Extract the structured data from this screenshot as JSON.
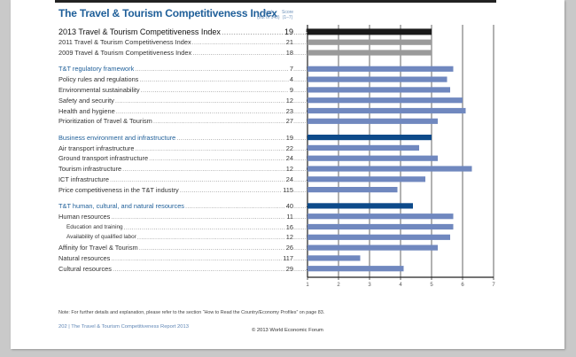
{
  "page": {
    "title": "The Travel & Tourism Competitiveness Index",
    "col_rank_label": "Rank",
    "col_rank_sub": "(out of 140)",
    "col_score_label": "Score",
    "col_score_sub": "(1–7)",
    "note": "Note:   For further details and explanation, please refer to the section “How to Read the Country/Economy Profiles” on page 83.",
    "footer_left": "202  |  The Travel & Tourism Competitiveness Report 2013",
    "footer_right": "© 2013 World Economic Forum"
  },
  "colors": {
    "overall": "#1a1a1a",
    "previous": "#9a9a9a",
    "pillar": "#0d4a8a",
    "indicator": "#7088bf",
    "title": "#1f5f99"
  },
  "chart_data": {
    "type": "bar",
    "orientation": "horizontal",
    "title": "The Travel & Tourism Competitiveness Index",
    "xlabel": "",
    "ylabel": "",
    "xlim": [
      1,
      7
    ],
    "xticks": [
      "1",
      "2",
      "3",
      "4",
      "5",
      "6",
      "7"
    ],
    "grid": true,
    "rows": [
      {
        "label": "2013 Travel & Tourism Competitiveness Index",
        "rank": "19",
        "score": 5.0,
        "kind": "overall"
      },
      {
        "label": "2011 Travel & Tourism Competitiveness Index",
        "rank": "21",
        "score": 5.0,
        "kind": "previous"
      },
      {
        "label": "2009 Travel & Tourism Competitiveness Index",
        "rank": "18",
        "score": 5.0,
        "kind": "previous"
      },
      {
        "label": "T&T regulatory framework",
        "rank": "7",
        "score": 5.7,
        "kind": "pillar-light",
        "gap": true
      },
      {
        "label": "Policy rules and regulations",
        "rank": "4",
        "score": 5.5,
        "kind": "indicator"
      },
      {
        "label": "Environmental sustainability",
        "rank": "9",
        "score": 5.6,
        "kind": "indicator"
      },
      {
        "label": "Safety and security",
        "rank": "12",
        "score": 6.0,
        "kind": "indicator"
      },
      {
        "label": "Health and hygiene",
        "rank": "23",
        "score": 6.1,
        "kind": "indicator"
      },
      {
        "label": "Prioritization of Travel & Tourism",
        "rank": "27",
        "score": 5.2,
        "kind": "indicator"
      },
      {
        "label": "Business environment and infrastructure",
        "rank": "19",
        "score": 5.0,
        "kind": "pillar",
        "gap": true
      },
      {
        "label": "Air transport infrastructure",
        "rank": "22",
        "score": 4.6,
        "kind": "indicator"
      },
      {
        "label": "Ground transport infrastructure",
        "rank": "24",
        "score": 5.2,
        "kind": "indicator"
      },
      {
        "label": "Tourism infrastructure",
        "rank": "12",
        "score": 6.3,
        "kind": "indicator"
      },
      {
        "label": "ICT infrastructure",
        "rank": "24",
        "score": 4.8,
        "kind": "indicator"
      },
      {
        "label": "Price competitiveness in the T&T industry",
        "rank": "115",
        "score": 3.9,
        "kind": "indicator"
      },
      {
        "label": "T&T human, cultural, and natural resources",
        "rank": "40",
        "score": 4.4,
        "kind": "pillar",
        "gap": true
      },
      {
        "label": "Human resources",
        "rank": "11",
        "score": 5.7,
        "kind": "indicator"
      },
      {
        "label": "Education and training",
        "rank": "16",
        "score": 5.7,
        "kind": "sub"
      },
      {
        "label": "Availability of qualified labor",
        "rank": "12",
        "score": 5.6,
        "kind": "sub"
      },
      {
        "label": "Affinity for Travel & Tourism",
        "rank": "26",
        "score": 5.2,
        "kind": "indicator"
      },
      {
        "label": "Natural resources",
        "rank": "117",
        "score": 2.7,
        "kind": "indicator"
      },
      {
        "label": "Cultural resources",
        "rank": "29",
        "score": 4.1,
        "kind": "indicator"
      }
    ]
  }
}
